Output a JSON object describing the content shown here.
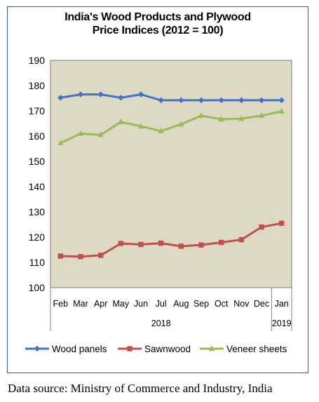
{
  "chart_data": {
    "type": "line",
    "title_line1": "India's Wood Products and Plywood",
    "title_line2": "Price Indices (2012 = 100)",
    "categories": [
      "Feb",
      "Mar",
      "Apr",
      "May",
      "Jun",
      "Jul",
      "Aug",
      "Sep",
      "Oct",
      "Nov",
      "Dec",
      "Jan"
    ],
    "year_groups": [
      {
        "label": "2018",
        "span": 11
      },
      {
        "label": "2019",
        "span": 1
      }
    ],
    "ylim": [
      100,
      190
    ],
    "yticks": [
      100,
      110,
      120,
      130,
      140,
      150,
      160,
      170,
      180,
      190
    ],
    "series": [
      {
        "name": "Wood panels",
        "color": "#4472c4",
        "marker": "diamond",
        "values": [
          175.2,
          176.5,
          176.5,
          175.2,
          176.5,
          174.2,
          174.2,
          174.2,
          174.2,
          174.2,
          174.2,
          174.2
        ]
      },
      {
        "name": "Sawnwood",
        "color": "#c0504d",
        "marker": "square",
        "values": [
          112.5,
          112.3,
          112.8,
          117.5,
          117.1,
          117.6,
          116.4,
          116.9,
          117.9,
          119.0,
          124.0,
          125.5
        ]
      },
      {
        "name": "Veneer sheets",
        "color": "#9bbb59",
        "marker": "triangle",
        "values": [
          157.3,
          161.0,
          160.5,
          165.6,
          163.9,
          162.0,
          164.7,
          168.1,
          166.7,
          166.9,
          168.1,
          169.8
        ]
      }
    ],
    "plot_background": "#ddd9c3",
    "legend_position": "bottom",
    "grid": false
  },
  "source_text": "Data source: Ministry of Commerce and Industry, India"
}
